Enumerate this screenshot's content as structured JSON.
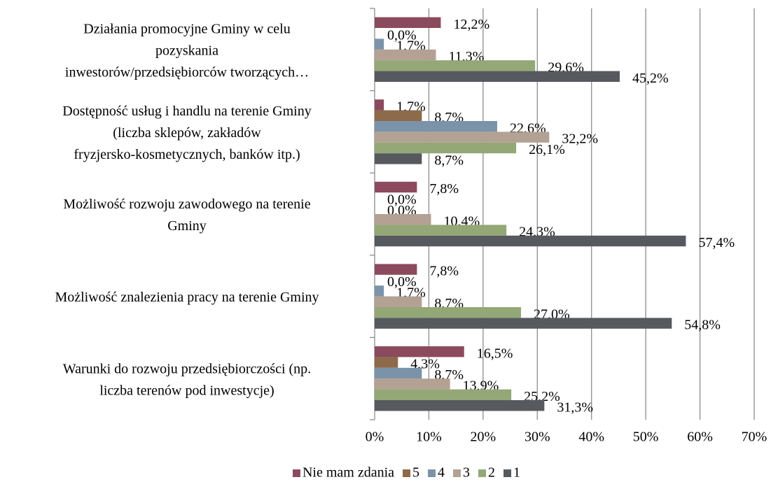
{
  "chart_data": {
    "type": "hbar",
    "categories": [
      [
        "Działania promocyjne Gminy w celu",
        "pozyskania",
        "inwestorów/przedsiębiorców tworzących…"
      ],
      [
        "Dostępność usług i handlu na terenie Gminy",
        "(liczba sklepów, zakładów",
        "fryzjersko-kosmetycznych, banków itp.)"
      ],
      [
        "Możliwość rozwoju zawodowego na terenie",
        "Gminy"
      ],
      [
        "Możliwość znalezienia pracy na terenie Gminy"
      ],
      [
        "Warunki do rozwoju przedsiębiorczości (np.",
        "liczba terenów pod inwestycje)"
      ]
    ],
    "series": [
      {
        "name": "Nie mam zdania",
        "color": "#8b4a5d",
        "values": [
          12.2,
          1.7,
          7.8,
          7.8,
          16.5
        ],
        "value_labels": [
          "12,2%",
          "1,7%",
          "7,8%",
          "7,8%",
          "16,5%"
        ]
      },
      {
        "name": "5",
        "color": "#8c6a4a",
        "values": [
          0.0,
          8.7,
          0.0,
          0.0,
          4.3
        ],
        "value_labels": [
          "0,0%",
          "8,7%",
          "0,0%",
          "0,0%",
          "4,3%"
        ]
      },
      {
        "name": "4",
        "color": "#7b93a8",
        "values": [
          1.7,
          22.6,
          0.0,
          1.7,
          8.7
        ],
        "value_labels": [
          "1,7%",
          "22,6%",
          "0,0%",
          "1,7%",
          "8,7%"
        ]
      },
      {
        "name": "3",
        "color": "#b3a194",
        "values": [
          11.3,
          32.2,
          10.4,
          8.7,
          13.9
        ],
        "value_labels": [
          "11,3%",
          "32,2%",
          "10,4%",
          "8,7%",
          "13,9%"
        ]
      },
      {
        "name": "2",
        "color": "#93a876",
        "values": [
          29.6,
          26.1,
          24.3,
          27.0,
          25.2
        ],
        "value_labels": [
          "29,6%",
          "26,1%",
          "24,3%",
          "27,0%",
          "25,2%"
        ]
      },
      {
        "name": "1",
        "color": "#56595e",
        "values": [
          45.2,
          8.7,
          57.4,
          54.8,
          31.3
        ],
        "value_labels": [
          "45,2%",
          "8,7%",
          "57,4%",
          "54,8%",
          "31,3%"
        ]
      }
    ],
    "xlim": [
      0,
      70
    ],
    "xticks": [
      {
        "value": 0,
        "label": "0%"
      },
      {
        "value": 10,
        "label": "10%"
      },
      {
        "value": 20,
        "label": "20%"
      },
      {
        "value": 30,
        "label": "30%"
      },
      {
        "value": 40,
        "label": "40%"
      },
      {
        "value": 50,
        "label": "50%"
      },
      {
        "value": 60,
        "label": "60%"
      },
      {
        "value": 70,
        "label": "70%"
      }
    ],
    "grid": true,
    "legend": "bottom"
  }
}
